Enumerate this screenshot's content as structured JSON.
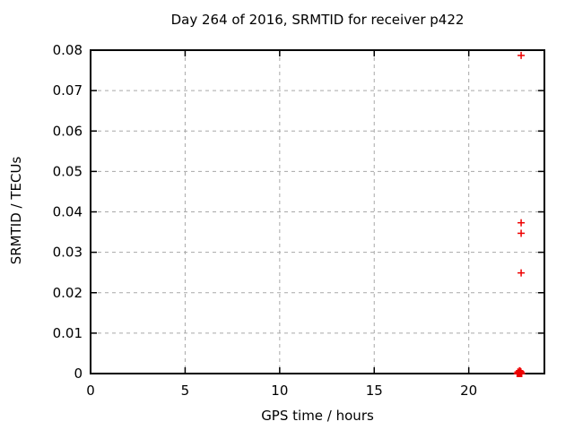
{
  "window": {
    "background_color": "#ffffff"
  },
  "chart_data": {
    "type": "scatter",
    "title": "Day 264 of 2016, SRMTID for receiver p422",
    "xlabel": "GPS time / hours",
    "ylabel": "SRMTID / TECUs",
    "xlim": [
      0,
      24
    ],
    "ylim": [
      0,
      0.08
    ],
    "grid": true,
    "grid_style": "dashed",
    "legend_position": "none",
    "marker": "plus",
    "marker_color": "#ee0000",
    "axis_color": "#000000",
    "grid_color": "#a8a8a8",
    "xticks": [
      {
        "value": 0,
        "label": "0"
      },
      {
        "value": 5,
        "label": "5"
      },
      {
        "value": 10,
        "label": "10"
      },
      {
        "value": 15,
        "label": "15"
      },
      {
        "value": 20,
        "label": "20"
      }
    ],
    "yticks": [
      {
        "value": 0,
        "label": "0"
      },
      {
        "value": 0.01,
        "label": "0.01"
      },
      {
        "value": 0.02,
        "label": "0.02"
      },
      {
        "value": 0.03,
        "label": "0.03"
      },
      {
        "value": 0.04,
        "label": "0.04"
      },
      {
        "value": 0.05,
        "label": "0.05"
      },
      {
        "value": 0.06,
        "label": "0.06"
      },
      {
        "value": 0.07,
        "label": "0.07"
      },
      {
        "value": 0.08,
        "label": "0.08"
      }
    ],
    "series": [
      {
        "name": "SRMTID",
        "points": [
          {
            "x": 22.77,
            "y": 0.0787
          },
          {
            "x": 22.77,
            "y": 0.0373
          },
          {
            "x": 22.77,
            "y": 0.0347
          },
          {
            "x": 22.77,
            "y": 0.0249
          },
          {
            "x": 22.56,
            "y": 0.0
          },
          {
            "x": 22.6,
            "y": 0.0
          },
          {
            "x": 22.64,
            "y": 0.0
          },
          {
            "x": 22.68,
            "y": 0.0
          },
          {
            "x": 22.72,
            "y": 0.0
          },
          {
            "x": 22.76,
            "y": 0.0
          },
          {
            "x": 22.8,
            "y": 0.0
          },
          {
            "x": 22.6,
            "y": 0.0004
          },
          {
            "x": 22.64,
            "y": 0.0002
          },
          {
            "x": 22.68,
            "y": 0.0007
          },
          {
            "x": 22.72,
            "y": 0.0006
          },
          {
            "x": 22.76,
            "y": 0.0004
          }
        ]
      }
    ]
  }
}
